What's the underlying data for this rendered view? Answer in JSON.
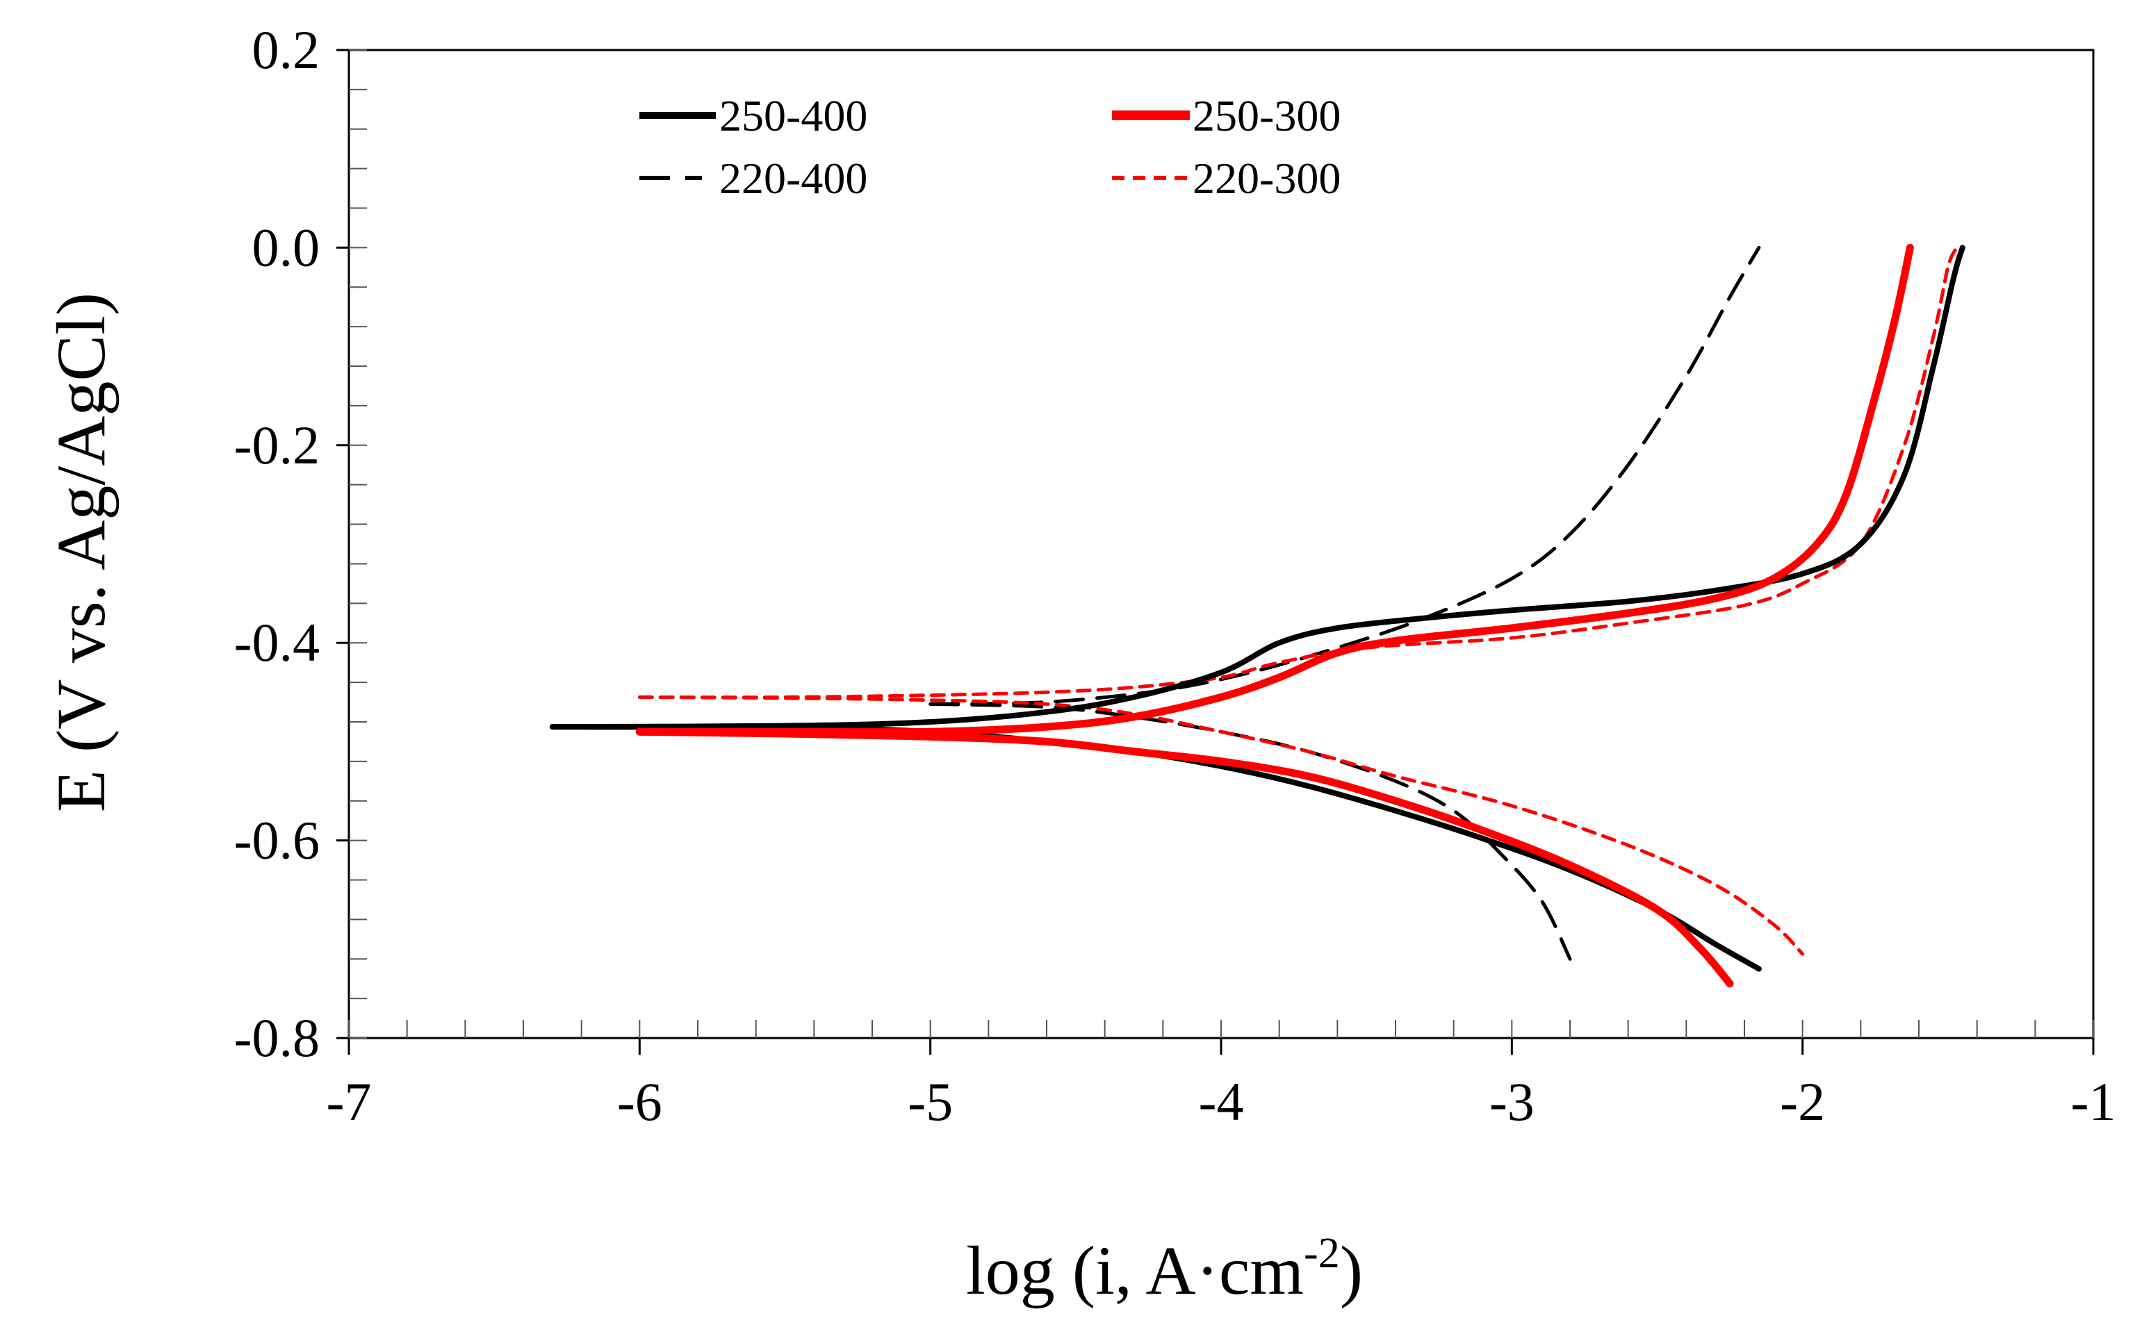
{
  "chart_data": {
    "type": "line",
    "title": "",
    "xlabel": "log (i, A·cm",
    "xlabel_sup": "-2",
    "xlabel_close": ")",
    "ylabel": "E (V vs. Ag/AgCl)",
    "xlim": [
      -7,
      -1
    ],
    "ylim": [
      -0.8,
      0.2
    ],
    "xticks": [
      -7,
      -6,
      -5,
      -4,
      -3,
      -2,
      -1
    ],
    "xtick_labels": [
      "-7",
      "-6",
      "-5",
      "-4",
      "-3",
      "-2",
      "-1"
    ],
    "yticks": [
      0.2,
      0.0,
      -0.2,
      -0.4,
      -0.6,
      -0.8
    ],
    "ytick_labels": [
      "0.2",
      "0.0",
      "-0.2",
      "-0.4",
      "-0.6",
      "-0.8"
    ],
    "grid": false,
    "legend_position": "top-center",
    "series": [
      {
        "name": "250-400",
        "color": "#000000",
        "style": "solid",
        "anodic": [
          [
            -6.3,
            -0.485
          ],
          [
            -5.5,
            -0.484
          ],
          [
            -5.0,
            -0.48
          ],
          [
            -4.6,
            -0.47
          ],
          [
            -4.3,
            -0.455
          ],
          [
            -4.0,
            -0.43
          ],
          [
            -3.8,
            -0.4
          ],
          [
            -3.6,
            -0.385
          ],
          [
            -3.3,
            -0.375
          ],
          [
            -3.0,
            -0.367
          ],
          [
            -2.6,
            -0.358
          ],
          [
            -2.3,
            -0.347
          ],
          [
            -2.0,
            -0.33
          ],
          [
            -1.8,
            -0.3
          ],
          [
            -1.65,
            -0.23
          ],
          [
            -1.55,
            -0.12
          ],
          [
            -1.48,
            -0.03
          ],
          [
            -1.45,
            0.0
          ]
        ],
        "cathodic": [
          [
            -6.3,
            -0.485
          ],
          [
            -5.5,
            -0.486
          ],
          [
            -5.0,
            -0.49
          ],
          [
            -4.6,
            -0.5
          ],
          [
            -4.3,
            -0.51
          ],
          [
            -4.0,
            -0.525
          ],
          [
            -3.7,
            -0.545
          ],
          [
            -3.4,
            -0.57
          ],
          [
            -3.1,
            -0.598
          ],
          [
            -2.8,
            -0.63
          ],
          [
            -2.5,
            -0.67
          ],
          [
            -2.3,
            -0.705
          ],
          [
            -2.15,
            -0.73
          ]
        ]
      },
      {
        "name": "250-300",
        "color": "#ff0000",
        "style": "solid",
        "anodic": [
          [
            -6.0,
            -0.49
          ],
          [
            -5.5,
            -0.49
          ],
          [
            -5.0,
            -0.49
          ],
          [
            -4.6,
            -0.485
          ],
          [
            -4.3,
            -0.475
          ],
          [
            -4.0,
            -0.455
          ],
          [
            -3.8,
            -0.435
          ],
          [
            -3.6,
            -0.41
          ],
          [
            -3.4,
            -0.398
          ],
          [
            -3.0,
            -0.385
          ],
          [
            -2.6,
            -0.37
          ],
          [
            -2.3,
            -0.355
          ],
          [
            -2.1,
            -0.335
          ],
          [
            -1.95,
            -0.3
          ],
          [
            -1.85,
            -0.25
          ],
          [
            -1.75,
            -0.15
          ],
          [
            -1.68,
            -0.07
          ],
          [
            -1.63,
            0.0
          ]
        ],
        "cathodic": [
          [
            -6.0,
            -0.49
          ],
          [
            -5.5,
            -0.492
          ],
          [
            -5.0,
            -0.495
          ],
          [
            -4.6,
            -0.5
          ],
          [
            -4.3,
            -0.51
          ],
          [
            -4.0,
            -0.52
          ],
          [
            -3.7,
            -0.535
          ],
          [
            -3.4,
            -0.56
          ],
          [
            -3.1,
            -0.59
          ],
          [
            -2.8,
            -0.625
          ],
          [
            -2.5,
            -0.67
          ],
          [
            -2.35,
            -0.71
          ],
          [
            -2.25,
            -0.745
          ]
        ]
      },
      {
        "name": "220-400",
        "color": "#000000",
        "style": "dashed-long",
        "anodic": [
          [
            -5.0,
            -0.462
          ],
          [
            -4.6,
            -0.46
          ],
          [
            -4.2,
            -0.448
          ],
          [
            -3.9,
            -0.43
          ],
          [
            -3.6,
            -0.405
          ],
          [
            -3.3,
            -0.375
          ],
          [
            -3.0,
            -0.335
          ],
          [
            -2.8,
            -0.29
          ],
          [
            -2.6,
            -0.22
          ],
          [
            -2.4,
            -0.13
          ],
          [
            -2.25,
            -0.05
          ],
          [
            -2.15,
            0.0
          ]
        ],
        "cathodic": [
          [
            -5.0,
            -0.462
          ],
          [
            -4.6,
            -0.465
          ],
          [
            -4.3,
            -0.475
          ],
          [
            -4.0,
            -0.49
          ],
          [
            -3.7,
            -0.51
          ],
          [
            -3.4,
            -0.54
          ],
          [
            -3.2,
            -0.57
          ],
          [
            -3.05,
            -0.61
          ],
          [
            -2.9,
            -0.66
          ],
          [
            -2.8,
            -0.72
          ]
        ]
      },
      {
        "name": "220-300",
        "color": "#ff0000",
        "style": "dashed-short",
        "anodic": [
          [
            -6.0,
            -0.455
          ],
          [
            -5.5,
            -0.455
          ],
          [
            -5.0,
            -0.453
          ],
          [
            -4.6,
            -0.45
          ],
          [
            -4.3,
            -0.445
          ],
          [
            -4.0,
            -0.435
          ],
          [
            -3.8,
            -0.42
          ],
          [
            -3.5,
            -0.405
          ],
          [
            -3.0,
            -0.395
          ],
          [
            -2.6,
            -0.38
          ],
          [
            -2.2,
            -0.362
          ],
          [
            -2.0,
            -0.34
          ],
          [
            -1.8,
            -0.3
          ],
          [
            -1.65,
            -0.2
          ],
          [
            -1.55,
            -0.09
          ],
          [
            -1.5,
            -0.02
          ],
          [
            -1.47,
            0.0
          ]
        ],
        "cathodic": [
          [
            -6.0,
            -0.455
          ],
          [
            -5.5,
            -0.456
          ],
          [
            -5.0,
            -0.458
          ],
          [
            -4.6,
            -0.462
          ],
          [
            -4.3,
            -0.472
          ],
          [
            -4.0,
            -0.49
          ],
          [
            -3.7,
            -0.51
          ],
          [
            -3.4,
            -0.535
          ],
          [
            -3.0,
            -0.565
          ],
          [
            -2.6,
            -0.605
          ],
          [
            -2.3,
            -0.645
          ],
          [
            -2.1,
            -0.685
          ],
          [
            -2.0,
            -0.715
          ]
        ]
      }
    ]
  }
}
